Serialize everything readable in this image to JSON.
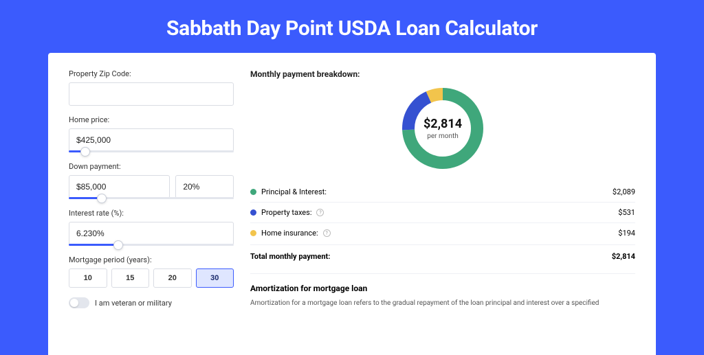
{
  "page": {
    "title": "Sabbath Day Point USDA Loan Calculator",
    "bg_color": "#3b5bfd"
  },
  "form": {
    "zip": {
      "label": "Property Zip Code:",
      "value": ""
    },
    "home_price": {
      "label": "Home price:",
      "value": "$425,000",
      "slider_pct": 10
    },
    "down_payment": {
      "label": "Down payment:",
      "amount": "$85,000",
      "pct": "20%",
      "slider_pct": 20
    },
    "interest_rate": {
      "label": "Interest rate (%):",
      "value": "6.230%",
      "slider_pct": 30
    },
    "mortgage_period": {
      "label": "Mortgage period (years):",
      "options": [
        "10",
        "15",
        "20",
        "30"
      ],
      "selected_index": 3
    },
    "veteran": {
      "label": "I am veteran or military",
      "checked": false
    }
  },
  "breakdown": {
    "title": "Monthly payment breakdown:",
    "total_display": "$2,814",
    "total_sub": "per month",
    "donut": {
      "type": "donut",
      "segments": [
        {
          "key": "principal_interest",
          "value": 2089,
          "color": "#3fa77b"
        },
        {
          "key": "property_taxes",
          "value": 531,
          "color": "#3551d1"
        },
        {
          "key": "home_insurance",
          "value": 194,
          "color": "#f2c44c"
        }
      ],
      "stroke_width": 18,
      "radius": 50,
      "bg_color": "#ffffff"
    },
    "items": [
      {
        "label": "Principal & Interest:",
        "value": "$2,089",
        "color": "#3fa77b",
        "has_info": false
      },
      {
        "label": "Property taxes:",
        "value": "$531",
        "color": "#3551d1",
        "has_info": true
      },
      {
        "label": "Home insurance:",
        "value": "$194",
        "color": "#f2c44c",
        "has_info": true
      }
    ],
    "total_label": "Total monthly payment:",
    "total_value": "$2,814"
  },
  "amortization": {
    "title": "Amortization for mortgage loan",
    "text": "Amortization for a mortgage loan refers to the gradual repayment of the loan principal and interest over a specified"
  }
}
